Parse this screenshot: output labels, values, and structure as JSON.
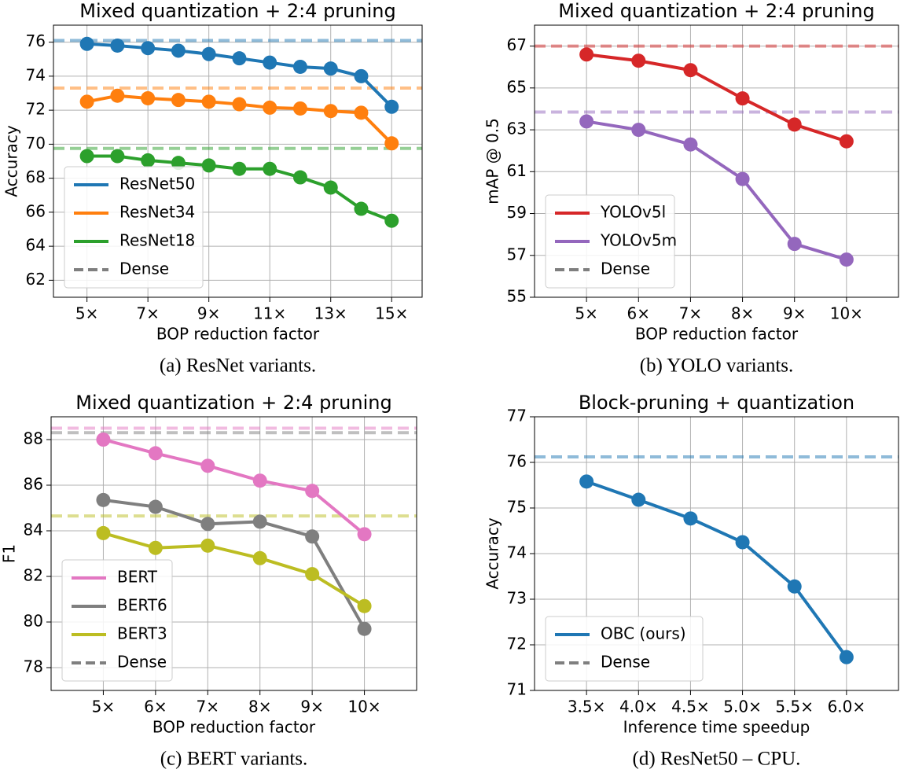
{
  "chart_data": [
    {
      "type": "line",
      "title": "Mixed quantization + 2:4 pruning",
      "caption": "(a) ResNet variants.",
      "xlabel": "BOP reduction factor",
      "ylabel": "Accuracy",
      "x": [
        5,
        6,
        7,
        8,
        9,
        10,
        11,
        12,
        13,
        14,
        15
      ],
      "series": [
        {
          "name": "ResNet50",
          "color": "#1f77b4",
          "values": [
            75.9,
            75.8,
            75.65,
            75.5,
            75.3,
            75.05,
            74.8,
            74.55,
            74.45,
            74.0,
            72.2
          ],
          "baseline": 76.1
        },
        {
          "name": "ResNet34",
          "color": "#ff7f0e",
          "values": [
            72.5,
            72.85,
            72.7,
            72.6,
            72.5,
            72.35,
            72.15,
            72.1,
            71.95,
            71.85,
            70.05
          ],
          "baseline": 73.3
        },
        {
          "name": "ResNet18",
          "color": "#2ca02c",
          "values": [
            69.3,
            69.3,
            69.05,
            68.9,
            68.75,
            68.55,
            68.55,
            68.05,
            67.45,
            66.2,
            65.5
          ],
          "baseline": 69.75
        }
      ],
      "baseline_label": "Dense",
      "baseline_color": "#7f7f7f",
      "xlim": [
        3.9,
        16.0
      ],
      "ylim": [
        61,
        77
      ],
      "xticks": [
        {
          "value": 5,
          "label": "5×"
        },
        {
          "value": 7,
          "label": "7×"
        },
        {
          "value": 9,
          "label": "9×"
        },
        {
          "value": 11,
          "label": "11×"
        },
        {
          "value": 13,
          "label": "13×"
        },
        {
          "value": 15,
          "label": "15×"
        }
      ],
      "yticks": [
        62,
        64,
        66,
        68,
        70,
        72,
        74,
        76
      ],
      "grid": true,
      "legend": "lower left"
    },
    {
      "type": "line",
      "title": "Mixed quantization + 2:4 pruning",
      "caption": "(b) YOLO variants.",
      "xlabel": "BOP reduction factor",
      "ylabel": "mAP @ 0.5",
      "x": [
        5,
        6,
        7,
        8,
        9,
        10
      ],
      "series": [
        {
          "name": "YOLOv5l",
          "color": "#d62728",
          "values": [
            66.6,
            66.3,
            65.85,
            64.5,
            63.25,
            62.45
          ],
          "baseline": 67.0
        },
        {
          "name": "YOLOv5m",
          "color": "#9467bd",
          "values": [
            63.4,
            63.0,
            62.3,
            60.65,
            57.55,
            56.8
          ],
          "baseline": 63.85
        }
      ],
      "baseline_label": "Dense",
      "baseline_color": "#7f7f7f",
      "xlim": [
        4.0,
        11.0
      ],
      "ylim": [
        55,
        68
      ],
      "xticks": [
        {
          "value": 5,
          "label": "5×"
        },
        {
          "value": 6,
          "label": "6×"
        },
        {
          "value": 7,
          "label": "7×"
        },
        {
          "value": 8,
          "label": "8×"
        },
        {
          "value": 9,
          "label": "9×"
        },
        {
          "value": 10,
          "label": "10×"
        }
      ],
      "yticks": [
        55,
        57,
        59,
        61,
        63,
        65,
        67
      ],
      "grid": true,
      "legend": "lower left"
    },
    {
      "type": "line",
      "title": "Mixed quantization + 2:4 pruning",
      "caption": "(c) BERT variants.",
      "xlabel": "BOP reduction factor",
      "ylabel": "F1",
      "x": [
        5,
        6,
        7,
        8,
        9,
        10
      ],
      "series": [
        {
          "name": "BERT",
          "color": "#e377c2",
          "values": [
            88.0,
            87.4,
            86.85,
            86.2,
            85.75,
            83.85
          ],
          "baseline": 88.5
        },
        {
          "name": "BERT6",
          "color": "#7f7f7f",
          "values": [
            85.35,
            85.05,
            84.3,
            84.4,
            83.75,
            79.7
          ],
          "baseline": 88.3
        },
        {
          "name": "BERT3",
          "color": "#bcbd22",
          "values": [
            83.9,
            83.25,
            83.35,
            82.8,
            82.1,
            80.7
          ],
          "baseline": 84.65
        }
      ],
      "baseline_label": "Dense",
      "baseline_color": "#7f7f7f",
      "xlim": [
        4.0,
        11.0
      ],
      "ylim": [
        77,
        89
      ],
      "xticks": [
        {
          "value": 5,
          "label": "5×"
        },
        {
          "value": 6,
          "label": "6×"
        },
        {
          "value": 7,
          "label": "7×"
        },
        {
          "value": 8,
          "label": "8×"
        },
        {
          "value": 9,
          "label": "9×"
        },
        {
          "value": 10,
          "label": "10×"
        }
      ],
      "yticks": [
        78,
        80,
        82,
        84,
        86,
        88
      ],
      "grid": true,
      "legend": "lower left"
    },
    {
      "type": "line",
      "title": "Block-pruning + quantization",
      "caption": "(d) ResNet50 – CPU.",
      "xlabel": "Inference time speedup",
      "ylabel": "Accuracy",
      "x": [
        3.5,
        4.0,
        4.5,
        5.0,
        5.5,
        6.0
      ],
      "series": [
        {
          "name": "OBC (ours)",
          "color": "#1f77b4",
          "values": [
            75.58,
            75.18,
            74.77,
            74.25,
            73.28,
            71.73
          ],
          "baseline": 76.12
        }
      ],
      "baseline_label": "Dense",
      "baseline_color": "#7f7f7f",
      "xlim": [
        3.0,
        6.5
      ],
      "ylim": [
        71,
        77
      ],
      "xticks": [
        {
          "value": 3.5,
          "label": "3.5×"
        },
        {
          "value": 4.0,
          "label": "4.0×"
        },
        {
          "value": 4.5,
          "label": "4.5×"
        },
        {
          "value": 5.0,
          "label": "5.0×"
        },
        {
          "value": 5.5,
          "label": "5.5×"
        },
        {
          "value": 6.0,
          "label": "6.0×"
        }
      ],
      "yticks": [
        71,
        72,
        73,
        74,
        75,
        76,
        77
      ],
      "grid": true,
      "legend": "lower left"
    }
  ]
}
